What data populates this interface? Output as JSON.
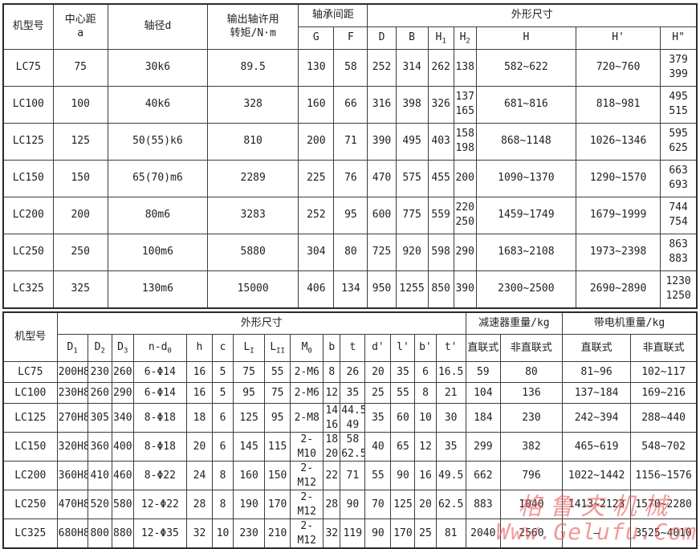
{
  "watermark": {
    "line1": "格鲁夫机械",
    "line2": "Www.Gelufu.Com"
  },
  "table1": {
    "headers": {
      "model": "机型号",
      "center_distance": "中心距\na",
      "shaft_diameter": "轴径d",
      "output_torque": "输出轴许用\n转矩/N·m",
      "bearing_span": "轴承间距",
      "overall_dims": "外形尺寸",
      "cols": [
        {
          "base": "G"
        },
        {
          "base": "F"
        },
        {
          "base": "D"
        },
        {
          "base": "B"
        },
        {
          "base": "H",
          "sub": "1"
        },
        {
          "base": "H",
          "sub": "2"
        },
        {
          "base": "H"
        },
        {
          "base": "H'"
        },
        {
          "base": "H\""
        }
      ]
    },
    "rows": [
      [
        "LC75",
        "75",
        "30k6",
        "89.5",
        "130",
        "58",
        "252",
        "314",
        "262",
        "138",
        "582~622",
        "720~760",
        "379\n399"
      ],
      [
        "LC100",
        "100",
        "40k6",
        "328",
        "160",
        "66",
        "316",
        "398",
        "326",
        "137\n165",
        "681~816",
        "818~981",
        "495\n515"
      ],
      [
        "LC125",
        "125",
        "50(55)k6",
        "810",
        "200",
        "71",
        "390",
        "495",
        "403",
        "158\n198",
        "868~1148",
        "1026~1346",
        "595\n625"
      ],
      [
        "LC150",
        "150",
        "65(70)m6",
        "2289",
        "225",
        "76",
        "470",
        "575",
        "455",
        "200",
        "1090~1370",
        "1290~1570",
        "663\n693"
      ],
      [
        "LC200",
        "200",
        "80m6",
        "3283",
        "252",
        "95",
        "600",
        "775",
        "559",
        "220\n250",
        "1459~1749",
        "1679~1999",
        "744\n754"
      ],
      [
        "LC250",
        "250",
        "100m6",
        "5880",
        "304",
        "80",
        "725",
        "920",
        "598",
        "290",
        "1683~2108",
        "1973~2398",
        "863\n883"
      ],
      [
        "LC325",
        "325",
        "130m6",
        "15000",
        "406",
        "134",
        "950",
        "1255",
        "850",
        "390",
        "2300~2500",
        "2690~2890",
        "1230\n1250"
      ]
    ]
  },
  "table2": {
    "headers": {
      "model": "机型号",
      "overall_dims": "外形尺寸",
      "reducer_weight": "减速器重量/kg",
      "with_motor_weight": "带电机重量/kg",
      "dim_cols": [
        {
          "base": "D",
          "sub": "1"
        },
        {
          "base": "D",
          "sub": "2"
        },
        {
          "base": "D",
          "sub": "3"
        },
        {
          "base": "n-d",
          "sub": "0"
        },
        {
          "base": "h"
        },
        {
          "base": "c"
        },
        {
          "base": "L",
          "sub": "I"
        },
        {
          "base": "L",
          "sub": "II"
        },
        {
          "base": "M",
          "sub": "0"
        },
        {
          "base": "b"
        },
        {
          "base": "t"
        },
        {
          "base": "d'"
        },
        {
          "base": "l'"
        },
        {
          "base": "b'"
        },
        {
          "base": "t'"
        }
      ],
      "weight_cols": [
        "直联式",
        "非直联式",
        "直联式",
        "非直联式"
      ]
    },
    "rows": [
      [
        "LC75",
        "200H8",
        "230",
        "260",
        "6-Φ14",
        "16",
        "5",
        "75",
        "55",
        "2-M6",
        "8",
        "26",
        "20",
        "35",
        "6",
        "16.5",
        "59",
        "80",
        "81~96",
        "102~117"
      ],
      [
        "LC100",
        "230H8",
        "260",
        "290",
        "6-Φ14",
        "16",
        "5",
        "95",
        "75",
        "2-M6",
        "12",
        "35",
        "25",
        "55",
        "8",
        "21",
        "104",
        "136",
        "137~184",
        "169~216"
      ],
      [
        "LC125",
        "270H8",
        "305",
        "340",
        "8-Φ18",
        "18",
        "6",
        "125",
        "95",
        "2-M8",
        "14\n16",
        "44.5\n49",
        "35",
        "60",
        "10",
        "30",
        "184",
        "230",
        "242~394",
        "288~440"
      ],
      [
        "LC150",
        "320H8",
        "360",
        "400",
        "8-Φ18",
        "20",
        "6",
        "145",
        "115",
        "2-M10",
        "18\n20",
        "58\n62.5",
        "40",
        "65",
        "12",
        "35",
        "299",
        "382",
        "465~619",
        "548~702"
      ],
      [
        "LC200",
        "360H8",
        "410",
        "460",
        "8-Φ22",
        "24",
        "8",
        "160",
        "150",
        "2-M12",
        "22",
        "71",
        "55",
        "90",
        "16",
        "49.5",
        "662",
        "796",
        "1022~1442",
        "1156~1576"
      ],
      [
        "LC250",
        "470H8",
        "520",
        "580",
        "12-Φ22",
        "28",
        "8",
        "190",
        "170",
        "2-M12",
        "28",
        "90",
        "70",
        "125",
        "20",
        "62.5",
        "883",
        "1040",
        "1413~2123",
        "1570~2280"
      ],
      [
        "LC325",
        "680H8",
        "800",
        "880",
        "12-Φ35",
        "32",
        "10",
        "230",
        "210",
        "2-M12",
        "32",
        "119",
        "90",
        "170",
        "25",
        "81",
        "2040",
        "2560",
        "—",
        "3525~4010"
      ]
    ]
  }
}
